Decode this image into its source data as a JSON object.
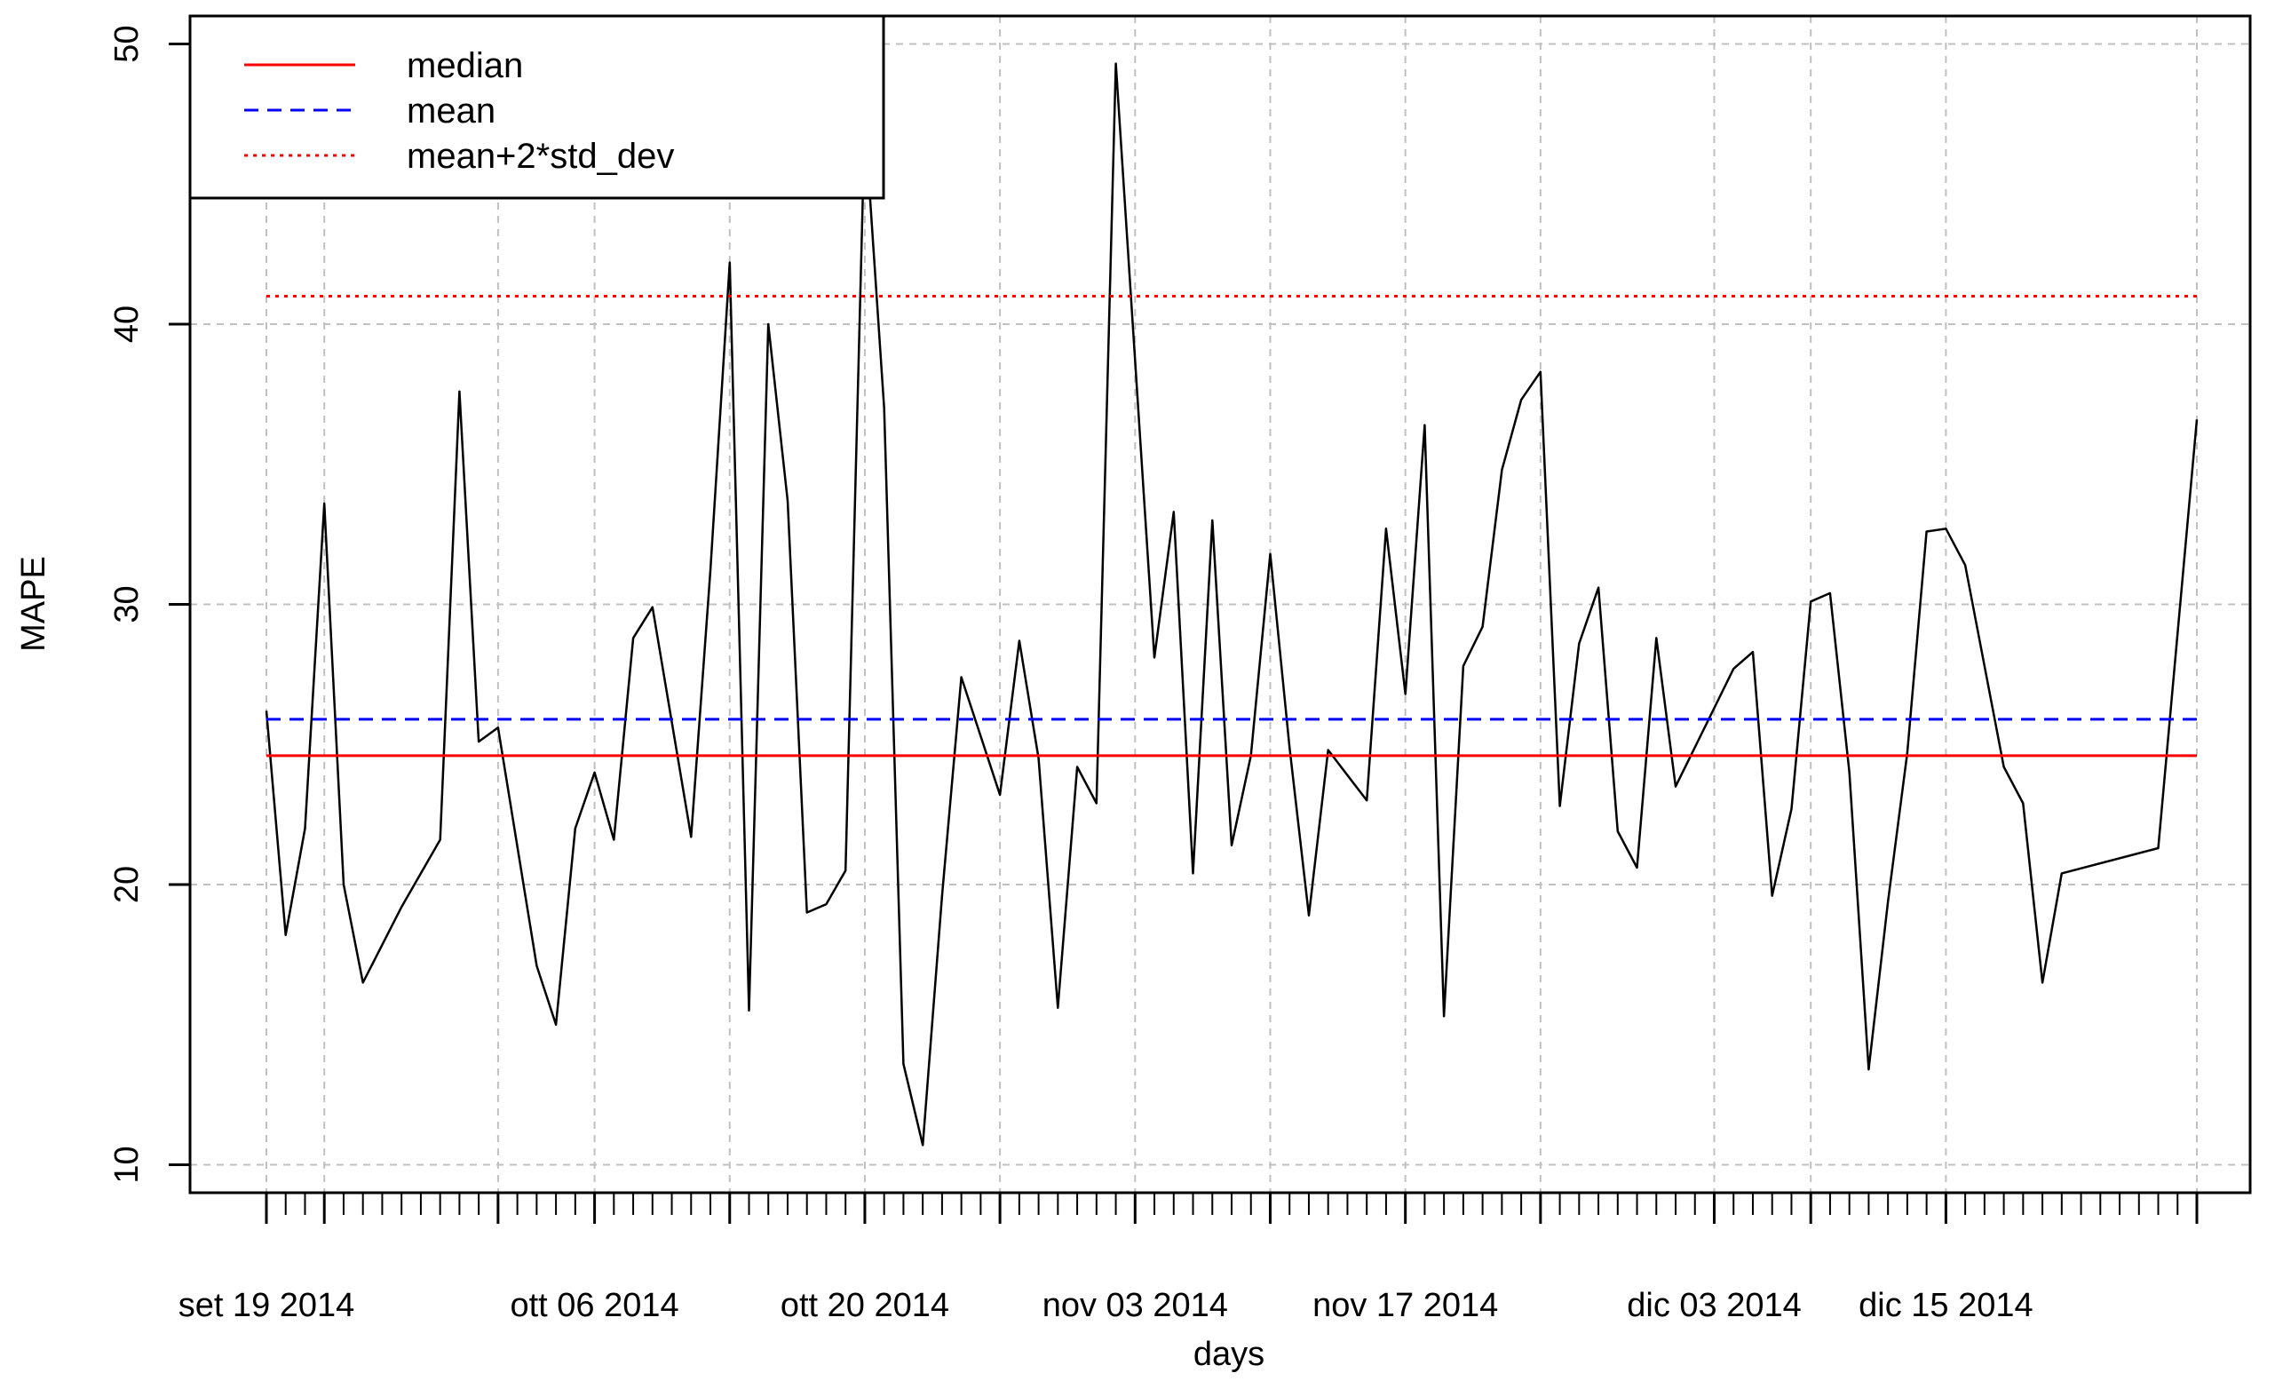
{
  "chart_data": {
    "type": "line",
    "title": "",
    "xlabel": "days",
    "ylabel": "MAPE",
    "ylim": [
      9,
      51
    ],
    "yticks": [
      10,
      20,
      30,
      40,
      50
    ],
    "grid": true,
    "legend_placement": "top-left",
    "x_start": "2014-09-19",
    "x_end": "2014-12-28",
    "major_ticks": [
      {
        "date": "2014-09-19",
        "label": "set 19 2014"
      },
      {
        "date": "2014-09-22",
        "label": ""
      },
      {
        "date": "2014-10-01",
        "label": ""
      },
      {
        "date": "2014-10-06",
        "label": "ott 06 2014"
      },
      {
        "date": "2014-10-13",
        "label": ""
      },
      {
        "date": "2014-10-20",
        "label": "ott 20 2014"
      },
      {
        "date": "2014-10-27",
        "label": ""
      },
      {
        "date": "2014-11-03",
        "label": "nov 03 2014"
      },
      {
        "date": "2014-11-10",
        "label": ""
      },
      {
        "date": "2014-11-17",
        "label": "nov 17 2014"
      },
      {
        "date": "2014-11-24",
        "label": ""
      },
      {
        "date": "2014-12-03",
        "label": "dic 03 2014"
      },
      {
        "date": "2014-12-08",
        "label": ""
      },
      {
        "date": "2014-12-15",
        "label": "dic 15 2014"
      },
      {
        "date": "2014-12-28",
        "label": ""
      }
    ],
    "series": [
      {
        "name": "MAPE",
        "color": "#000000",
        "style": "solid",
        "points": [
          [
            "2014-09-19",
            26.2
          ],
          [
            "2014-09-20",
            18.2
          ],
          [
            "2014-09-21",
            22.0
          ],
          [
            "2014-09-22",
            33.6
          ],
          [
            "2014-09-23",
            20.0
          ],
          [
            "2014-09-24",
            16.5
          ],
          [
            "2014-09-26",
            19.2
          ],
          [
            "2014-09-28",
            21.6
          ],
          [
            "2014-09-29",
            37.6
          ],
          [
            "2014-09-30",
            25.1
          ],
          [
            "2014-10-01",
            25.6
          ],
          [
            "2014-10-03",
            17.1
          ],
          [
            "2014-10-04",
            15.0
          ],
          [
            "2014-10-05",
            22.0
          ],
          [
            "2014-10-06",
            24.0
          ],
          [
            "2014-10-07",
            21.6
          ],
          [
            "2014-10-08",
            28.8
          ],
          [
            "2014-10-09",
            29.9
          ],
          [
            "2014-10-11",
            21.7
          ],
          [
            "2014-10-12",
            31.2
          ],
          [
            "2014-10-13",
            42.2
          ],
          [
            "2014-10-14",
            15.5
          ],
          [
            "2014-10-15",
            40.0
          ],
          [
            "2014-10-16",
            33.7
          ],
          [
            "2014-10-17",
            19.0
          ],
          [
            "2014-10-18",
            19.3
          ],
          [
            "2014-10-19",
            20.5
          ],
          [
            "2014-10-20",
            47.3
          ],
          [
            "2014-10-21",
            37.0
          ],
          [
            "2014-10-22",
            13.6
          ],
          [
            "2014-10-23",
            10.7
          ],
          [
            "2014-10-24",
            19.6
          ],
          [
            "2014-10-25",
            27.4
          ],
          [
            "2014-10-27",
            23.2
          ],
          [
            "2014-10-28",
            28.7
          ],
          [
            "2014-10-29",
            24.5
          ],
          [
            "2014-10-30",
            15.6
          ],
          [
            "2014-10-31",
            24.2
          ],
          [
            "2014-11-01",
            22.9
          ],
          [
            "2014-11-02",
            49.3
          ],
          [
            "2014-11-04",
            28.1
          ],
          [
            "2014-11-05",
            33.3
          ],
          [
            "2014-11-06",
            20.4
          ],
          [
            "2014-11-07",
            33.0
          ],
          [
            "2014-11-08",
            21.4
          ],
          [
            "2014-11-09",
            24.6
          ],
          [
            "2014-11-10",
            31.8
          ],
          [
            "2014-11-11",
            24.9
          ],
          [
            "2014-11-12",
            18.9
          ],
          [
            "2014-11-13",
            24.8
          ],
          [
            "2014-11-15",
            23.0
          ],
          [
            "2014-11-16",
            32.7
          ],
          [
            "2014-11-17",
            26.8
          ],
          [
            "2014-11-18",
            36.4
          ],
          [
            "2014-11-19",
            15.3
          ],
          [
            "2014-11-20",
            27.8
          ],
          [
            "2014-11-21",
            29.2
          ],
          [
            "2014-11-22",
            34.8
          ],
          [
            "2014-11-23",
            37.3
          ],
          [
            "2014-11-24",
            38.3
          ],
          [
            "2014-11-25",
            22.8
          ],
          [
            "2014-11-26",
            28.6
          ],
          [
            "2014-11-27",
            30.6
          ],
          [
            "2014-11-28",
            21.9
          ],
          [
            "2014-11-29",
            20.6
          ],
          [
            "2014-11-30",
            28.8
          ],
          [
            "2014-12-01",
            23.5
          ],
          [
            "2014-12-04",
            27.7
          ],
          [
            "2014-12-05",
            28.3
          ],
          [
            "2014-12-06",
            19.6
          ],
          [
            "2014-12-07",
            22.7
          ],
          [
            "2014-12-08",
            30.1
          ],
          [
            "2014-12-09",
            30.4
          ],
          [
            "2014-12-10",
            24.0
          ],
          [
            "2014-12-11",
            13.4
          ],
          [
            "2014-12-12",
            19.4
          ],
          [
            "2014-12-13",
            24.7
          ],
          [
            "2014-12-14",
            32.6
          ],
          [
            "2014-12-15",
            32.7
          ],
          [
            "2014-12-16",
            31.4
          ],
          [
            "2014-12-18",
            24.2
          ],
          [
            "2014-12-19",
            22.9
          ],
          [
            "2014-12-20",
            16.5
          ],
          [
            "2014-12-21",
            20.4
          ],
          [
            "2014-12-26",
            21.3
          ],
          [
            "2014-12-28",
            36.6
          ]
        ]
      },
      {
        "name": "median",
        "color": "#ff0000",
        "style": "solid",
        "value": 24.6
      },
      {
        "name": "mean",
        "color": "#0000ff",
        "style": "dashed",
        "value": 25.9
      },
      {
        "name": "mean+2*std_dev",
        "color": "#ff0000",
        "style": "dotted",
        "value": 41.0
      }
    ]
  }
}
